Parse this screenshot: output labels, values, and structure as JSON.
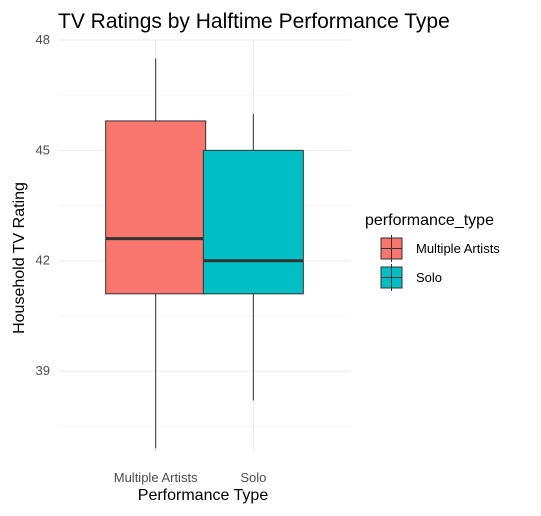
{
  "chart_data": {
    "type": "boxplot",
    "title": "TV Ratings by Halftime Performance Type",
    "xlabel": "Performance Type",
    "ylabel": "Household TV Rating",
    "ylim": [
      36.8,
      48
    ],
    "y_ticks": [
      39,
      42,
      45,
      48
    ],
    "categories": [
      "Multiple Artists",
      "Solo"
    ],
    "series": [
      {
        "name": "Multiple Artists",
        "color": "#F8766D",
        "min": 36.9,
        "q1": 41.1,
        "median": 42.6,
        "q3": 45.8,
        "max": 47.5
      },
      {
        "name": "Solo",
        "color": "#00BFC4",
        "min": 38.2,
        "q1": 41.1,
        "median": 42.0,
        "q3": 45.0,
        "max": 46.0
      }
    ],
    "legend": {
      "title": "performance_type",
      "position": "right"
    },
    "grid": true
  }
}
